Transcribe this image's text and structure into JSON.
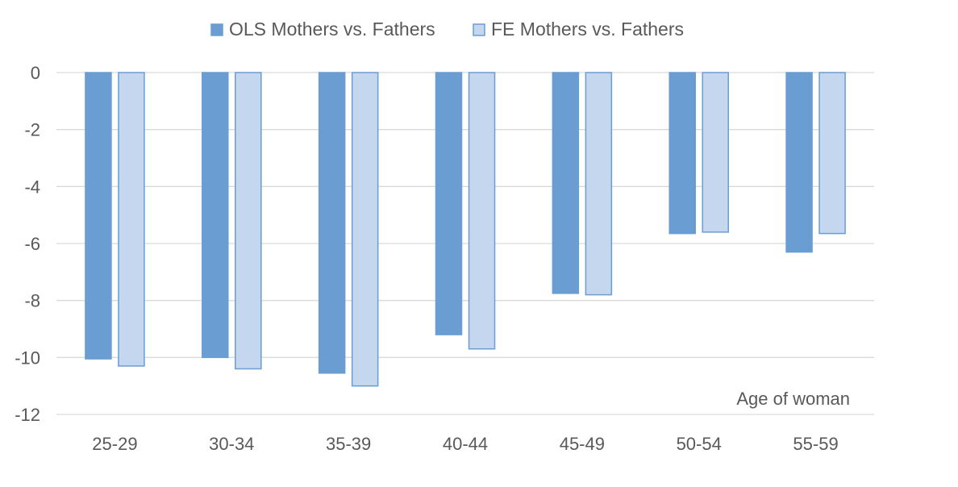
{
  "chart_data": {
    "type": "bar",
    "title": "",
    "xlabel": "Age of woman",
    "ylabel": "",
    "categories": [
      "25-29",
      "30-34",
      "35-39",
      "40-44",
      "45-49",
      "50-54",
      "55-59"
    ],
    "series": [
      {
        "name": "OLS Mothers vs. Fathers",
        "values": [
          -10.05,
          -10.0,
          -10.55,
          -9.2,
          -7.75,
          -5.65,
          -6.3
        ],
        "color": "#6a9dd2",
        "stroke": "#6a9dd2"
      },
      {
        "name": "FE Mothers vs. Fathers",
        "values": [
          -10.3,
          -10.4,
          -11.0,
          -9.7,
          -7.8,
          -5.6,
          -5.65
        ],
        "color": "#c4d7ee",
        "stroke": "#6a9dd2"
      }
    ],
    "ylim": [
      -12,
      0
    ],
    "yticks": [
      0,
      -2,
      -4,
      -6,
      -8,
      -10,
      -12
    ],
    "grid": true,
    "legend_position": "top"
  }
}
